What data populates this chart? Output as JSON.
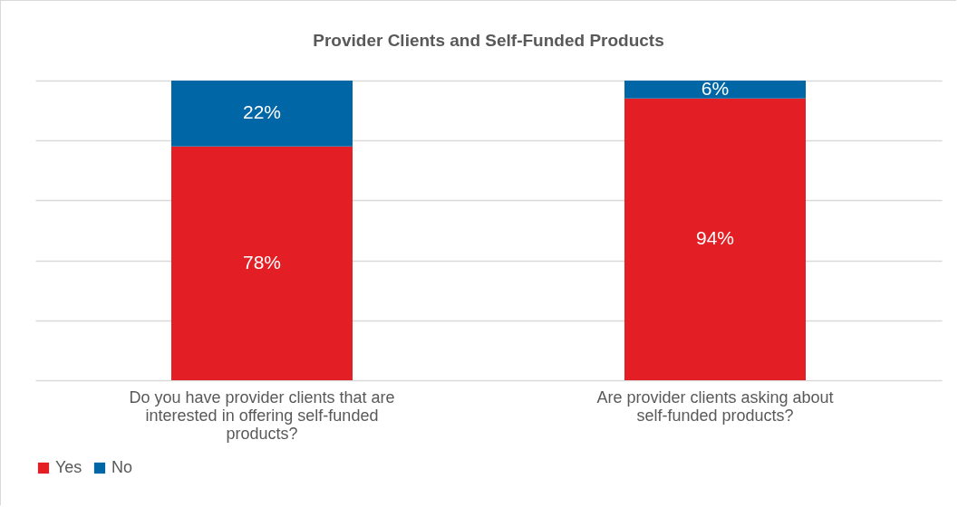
{
  "chart_data": {
    "type": "bar",
    "title": "Provider Clients and Self-Funded Products",
    "stacked": true,
    "categories": [
      "Do you have provider clients that are interested in offering self-funded products?",
      "Are provider clients asking about self-funded products?"
    ],
    "series": [
      {
        "name": "Yes",
        "color": "#e31e24",
        "values": [
          78,
          94
        ],
        "value_labels": [
          "78%",
          "94%"
        ]
      },
      {
        "name": "No",
        "color": "#0066a6",
        "values": [
          22,
          6
        ],
        "value_labels": [
          "22%",
          "6%"
        ]
      }
    ],
    "tick_labels": "x",
    "grid": "y",
    "legend": "bottom"
  }
}
